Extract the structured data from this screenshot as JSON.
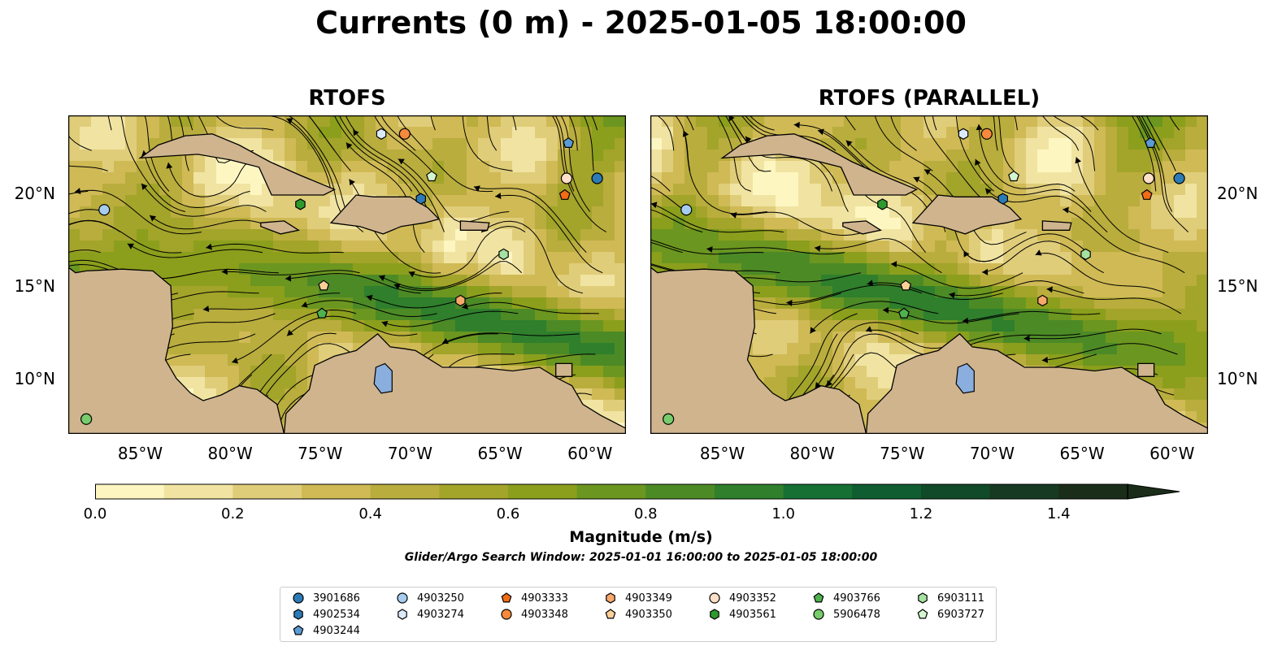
{
  "title": "Currents (0 m) - 2025-01-05 18:00:00",
  "panels": [
    {
      "title": "RTOFS"
    },
    {
      "title": "RTOFS (PARALLEL)"
    }
  ],
  "lon_ticks": [
    "85°W",
    "80°W",
    "75°W",
    "70°W",
    "65°W",
    "60°W"
  ],
  "lat_ticks": [
    "20°N",
    "15°N",
    "10°N"
  ],
  "colorbar": {
    "label": "Magnitude (m/s)",
    "ticks": [
      "0.0",
      "0.2",
      "0.4",
      "0.6",
      "0.8",
      "1.0",
      "1.2",
      "1.4"
    ],
    "min": 0.0,
    "max": 1.5,
    "extend": "max",
    "colors": [
      "#fdf6c1",
      "#f1e4a2",
      "#e0cd7a",
      "#cfba55",
      "#b9ad3d",
      "#a3a42a",
      "#8b9f1c",
      "#6b9620",
      "#4c8a26",
      "#2f7f2c",
      "#166f33",
      "#0f5d30",
      "#104a28",
      "#173a22",
      "#1a2d19"
    ]
  },
  "search_window": "Glider/Argo Search Window: 2025-01-01 16:00:00 to 2025-01-05 18:00:00",
  "colors": {
    "land": "#cfb48e",
    "lake": "#8aaede",
    "ocean_low": "#f4e7a6",
    "ocean_high": "#1f6b2c"
  },
  "legend": [
    {
      "id": "3901686",
      "marker": "circle",
      "color": "#2c7bb6"
    },
    {
      "id": "4902534",
      "marker": "hexagon",
      "color": "#2c7bb6"
    },
    {
      "id": "4903244",
      "marker": "pentagon",
      "color": "#5b9bd5"
    },
    {
      "id": "4903250",
      "marker": "circle",
      "color": "#a6cdee"
    },
    {
      "id": "4903274",
      "marker": "hexagon",
      "color": "#dbeaf8"
    },
    {
      "id": "4903333",
      "marker": "pentagon",
      "color": "#f26c16"
    },
    {
      "id": "4903348",
      "marker": "circle",
      "color": "#f6893b"
    },
    {
      "id": "4903349",
      "marker": "hexagon",
      "color": "#f7a86a"
    },
    {
      "id": "4903350",
      "marker": "pentagon",
      "color": "#fccf97"
    },
    {
      "id": "4903352",
      "marker": "circle",
      "color": "#fde0c7"
    },
    {
      "id": "4903561",
      "marker": "hexagon",
      "color": "#2e9a2e"
    },
    {
      "id": "4903766",
      "marker": "pentagon",
      "color": "#4fb24f"
    },
    {
      "id": "5906478",
      "marker": "circle",
      "color": "#77cc6b"
    },
    {
      "id": "6903111",
      "marker": "hexagon",
      "color": "#a5e1a0"
    },
    {
      "id": "6903727",
      "marker": "pentagon",
      "color": "#d4f5ce"
    }
  ],
  "floats": [
    {
      "id": "3901686",
      "lon": -59.6,
      "lat": 20.8
    },
    {
      "id": "4902534",
      "lon": -69.4,
      "lat": 19.7
    },
    {
      "id": "4903244",
      "lon": -61.2,
      "lat": 22.7
    },
    {
      "id": "4903250",
      "lon": -87.0,
      "lat": 19.1
    },
    {
      "id": "4903274",
      "lon": -71.6,
      "lat": 23.2
    },
    {
      "id": "4903333",
      "lon": -61.4,
      "lat": 19.9
    },
    {
      "id": "4903348",
      "lon": -70.3,
      "lat": 23.2
    },
    {
      "id": "4903349",
      "lon": -67.2,
      "lat": 14.2
    },
    {
      "id": "4903350",
      "lon": -74.8,
      "lat": 15.0
    },
    {
      "id": "4903352",
      "lon": -61.3,
      "lat": 20.8
    },
    {
      "id": "4903561",
      "lon": -76.1,
      "lat": 19.4
    },
    {
      "id": "4903766",
      "lon": -74.9,
      "lat": 13.5
    },
    {
      "id": "5906478",
      "lon": -88.0,
      "lat": 7.8
    },
    {
      "id": "6903111",
      "lon": -64.8,
      "lat": 16.7
    },
    {
      "id": "6903727",
      "lon": -68.8,
      "lat": 20.9
    }
  ],
  "extent": {
    "lon": [
      -89.0,
      -58.0
    ],
    "lat": [
      7.0,
      24.2
    ]
  }
}
